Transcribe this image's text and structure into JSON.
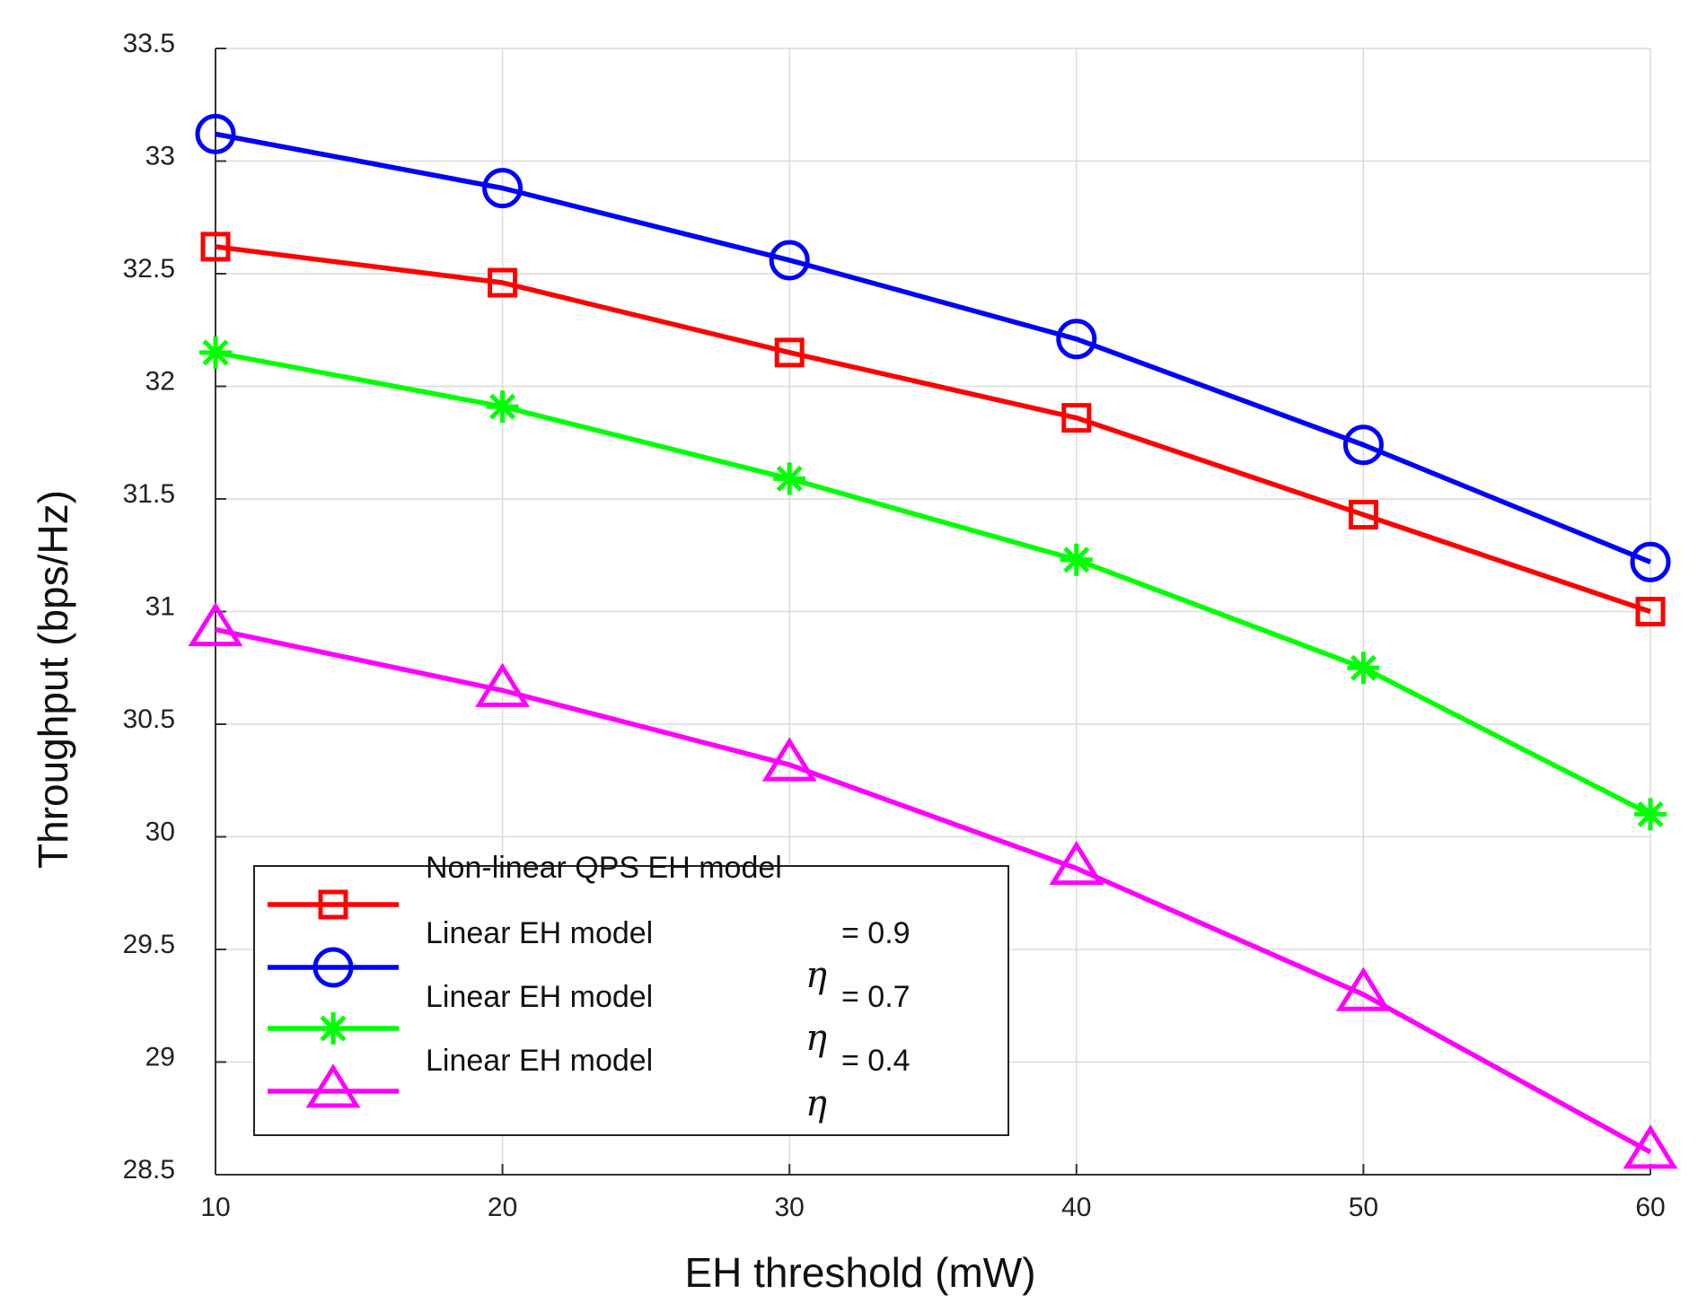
{
  "chart_data": {
    "type": "line",
    "title": "",
    "xlabel": "EH threshold (mW)",
    "ylabel": "Throughput (bps/Hz)",
    "xlim": [
      10,
      60
    ],
    "ylim": [
      28.5,
      33.5
    ],
    "grid": true,
    "x": [
      10,
      20,
      30,
      40,
      50,
      60
    ],
    "xticks": [
      "10",
      "20",
      "30",
      "40",
      "50",
      "60"
    ],
    "yticks": [
      "28.5",
      "29",
      "29.5",
      "30",
      "30.5",
      "31",
      "31.5",
      "32",
      "32.5",
      "33",
      "33.5"
    ],
    "series": [
      {
        "name": "Non-linear QPS EH model",
        "color": "#ff0000",
        "marker": "square",
        "values": [
          32.62,
          32.46,
          32.15,
          31.86,
          31.43,
          31.0
        ]
      },
      {
        "name": "Linear EH model",
        "eta_label": "η",
        "eta_value": "= 0.9",
        "color": "#0000ff",
        "marker": "circle",
        "values": [
          33.12,
          32.88,
          32.56,
          32.21,
          31.74,
          31.22
        ]
      },
      {
        "name": "Linear EH model",
        "eta_label": "η",
        "eta_value": "= 0.7",
        "color": "#00ff00",
        "marker": "star",
        "values": [
          32.15,
          31.91,
          31.59,
          31.23,
          30.75,
          30.1
        ]
      },
      {
        "name": "Linear EH model",
        "eta_label": "η",
        "eta_value": "= 0.4",
        "color": "#ff00ff",
        "marker": "triangle",
        "values": [
          30.92,
          30.65,
          30.32,
          29.86,
          29.3,
          28.6
        ]
      }
    ],
    "legend_position": "bottom-left"
  }
}
